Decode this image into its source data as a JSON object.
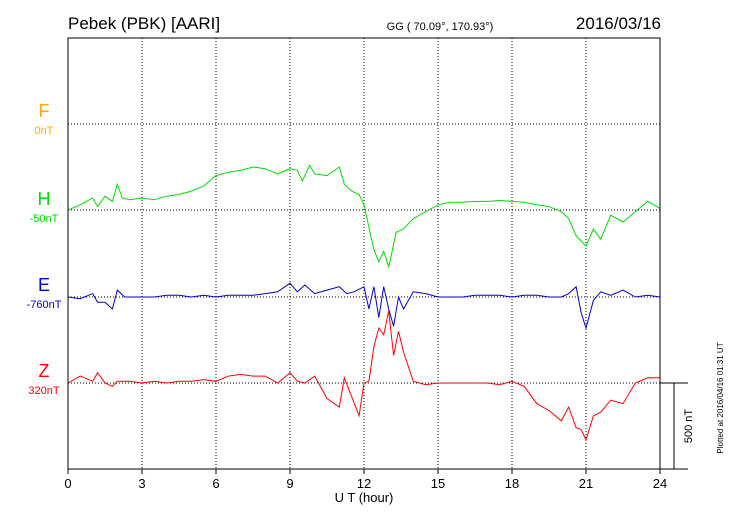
{
  "header": {
    "station": "Pebek (PBK)  [AARI]",
    "coords": "GG ( 70.09°, 170.93°)",
    "date": "2016/03/16"
  },
  "chart_data": {
    "type": "line",
    "xlabel": "U T (hour)",
    "xlim": [
      0,
      24
    ],
    "xticks": [
      "0",
      "3",
      "6",
      "9",
      "12",
      "15",
      "18",
      "21",
      "24"
    ],
    "scale_bar_label": "500 nT",
    "footnote": "Plotted at 2016/04/16 01:31  UT",
    "colors": {
      "F": "#ffaa00",
      "H": "#00dd00",
      "E": "#0000cc",
      "Z": "#ff0000"
    },
    "series": [
      {
        "name": "F",
        "baseline_label": "0nT",
        "color": "#ffaa00",
        "x": [],
        "y": []
      },
      {
        "name": "H",
        "baseline_label": "-50nT",
        "color": "#00dd00",
        "x": [
          0,
          0.5,
          1,
          1.2,
          1.5,
          1.8,
          2,
          2.2,
          2.5,
          3,
          3.5,
          4,
          4.5,
          5,
          5.5,
          6,
          6.5,
          7,
          7.5,
          8,
          8.5,
          9,
          9.3,
          9.5,
          9.8,
          10,
          10.5,
          11,
          11.2,
          11.5,
          11.8,
          12,
          12.2,
          12.4,
          12.6,
          12.8,
          13,
          13.1,
          13.3,
          13.6,
          14,
          14.5,
          15,
          15.5,
          16,
          16.5,
          17,
          17.5,
          18,
          18.5,
          19,
          19.5,
          20,
          20.3,
          20.6,
          20.8,
          21,
          21.3,
          21.6,
          22,
          22.5,
          23,
          23.5,
          24
        ],
        "y": [
          -50,
          -20,
          20,
          -30,
          30,
          0,
          100,
          20,
          10,
          20,
          10,
          30,
          40,
          60,
          90,
          150,
          170,
          180,
          200,
          190,
          160,
          190,
          180,
          120,
          210,
          160,
          150,
          200,
          100,
          60,
          40,
          -20,
          -150,
          -280,
          -350,
          -290,
          -380,
          -320,
          -180,
          -160,
          -100,
          -60,
          -20,
          -5,
          -5,
          0,
          0,
          5,
          0,
          -5,
          -20,
          -30,
          -60,
          -100,
          -200,
          -230,
          -260,
          -160,
          -220,
          -80,
          -120,
          -60,
          0,
          -40
        ]
      },
      {
        "name": "E",
        "baseline_label": "-760nT",
        "color": "#0000cc",
        "x": [
          0,
          0.5,
          1,
          1.2,
          1.5,
          1.8,
          2,
          2.3,
          2.5,
          3,
          3.5,
          4,
          4.5,
          5,
          5.5,
          6,
          6.5,
          7,
          7.5,
          8,
          8.5,
          9,
          9.3,
          9.6,
          10,
          10.5,
          11,
          11.3,
          11.6,
          12,
          12.2,
          12.4,
          12.6,
          12.8,
          13,
          13.2,
          13.4,
          13.6,
          14,
          14.5,
          15,
          15.5,
          16,
          16.5,
          17,
          17.5,
          18,
          18.5,
          19,
          19.5,
          20,
          20.3,
          20.6,
          20.8,
          21,
          21.3,
          21.6,
          22,
          22.5,
          23,
          23.5,
          24
        ],
        "y": [
          -760,
          -770,
          -740,
          -790,
          -790,
          -830,
          -720,
          -760,
          -760,
          -760,
          -760,
          -750,
          -750,
          -760,
          -750,
          -760,
          -750,
          -750,
          -750,
          -740,
          -730,
          -680,
          -730,
          -690,
          -740,
          -720,
          -700,
          -740,
          -730,
          -700,
          -830,
          -700,
          -880,
          -700,
          -830,
          -930,
          -760,
          -830,
          -730,
          -740,
          -760,
          -760,
          -760,
          -750,
          -750,
          -750,
          -760,
          -750,
          -750,
          -760,
          -760,
          -740,
          -700,
          -850,
          -940,
          -780,
          -730,
          -750,
          -720,
          -760,
          -750,
          -760
        ]
      },
      {
        "name": "Z",
        "baseline_label": "320nT",
        "color": "#ff0000",
        "x": [
          0,
          0.5,
          1,
          1.2,
          1.5,
          1.8,
          2,
          2.5,
          3,
          3.5,
          4,
          4.5,
          5,
          5.5,
          6,
          6.5,
          7,
          7.5,
          8,
          8.5,
          9,
          9.3,
          9.6,
          10,
          10.5,
          11,
          11.2,
          11.5,
          11.8,
          12,
          12.2,
          12.4,
          12.6,
          12.8,
          13,
          13.2,
          13.4,
          13.6,
          14,
          14.5,
          15,
          15.5,
          16,
          16.5,
          17,
          17.5,
          18,
          18.5,
          19,
          19.5,
          20,
          20.3,
          20.6,
          20.8,
          21,
          21.3,
          21.6,
          22,
          22.5,
          23,
          23.5,
          24
        ],
        "y": [
          320,
          360,
          330,
          380,
          320,
          300,
          330,
          330,
          320,
          330,
          320,
          330,
          330,
          340,
          330,
          360,
          370,
          360,
          360,
          320,
          380,
          330,
          320,
          360,
          230,
          180,
          350,
          240,
          130,
          320,
          330,
          530,
          640,
          600,
          740,
          480,
          620,
          500,
          330,
          310,
          320,
          320,
          320,
          320,
          320,
          310,
          330,
          300,
          200,
          160,
          100,
          180,
          60,
          50,
          -10,
          130,
          150,
          220,
          200,
          320,
          350,
          350
        ]
      }
    ]
  }
}
